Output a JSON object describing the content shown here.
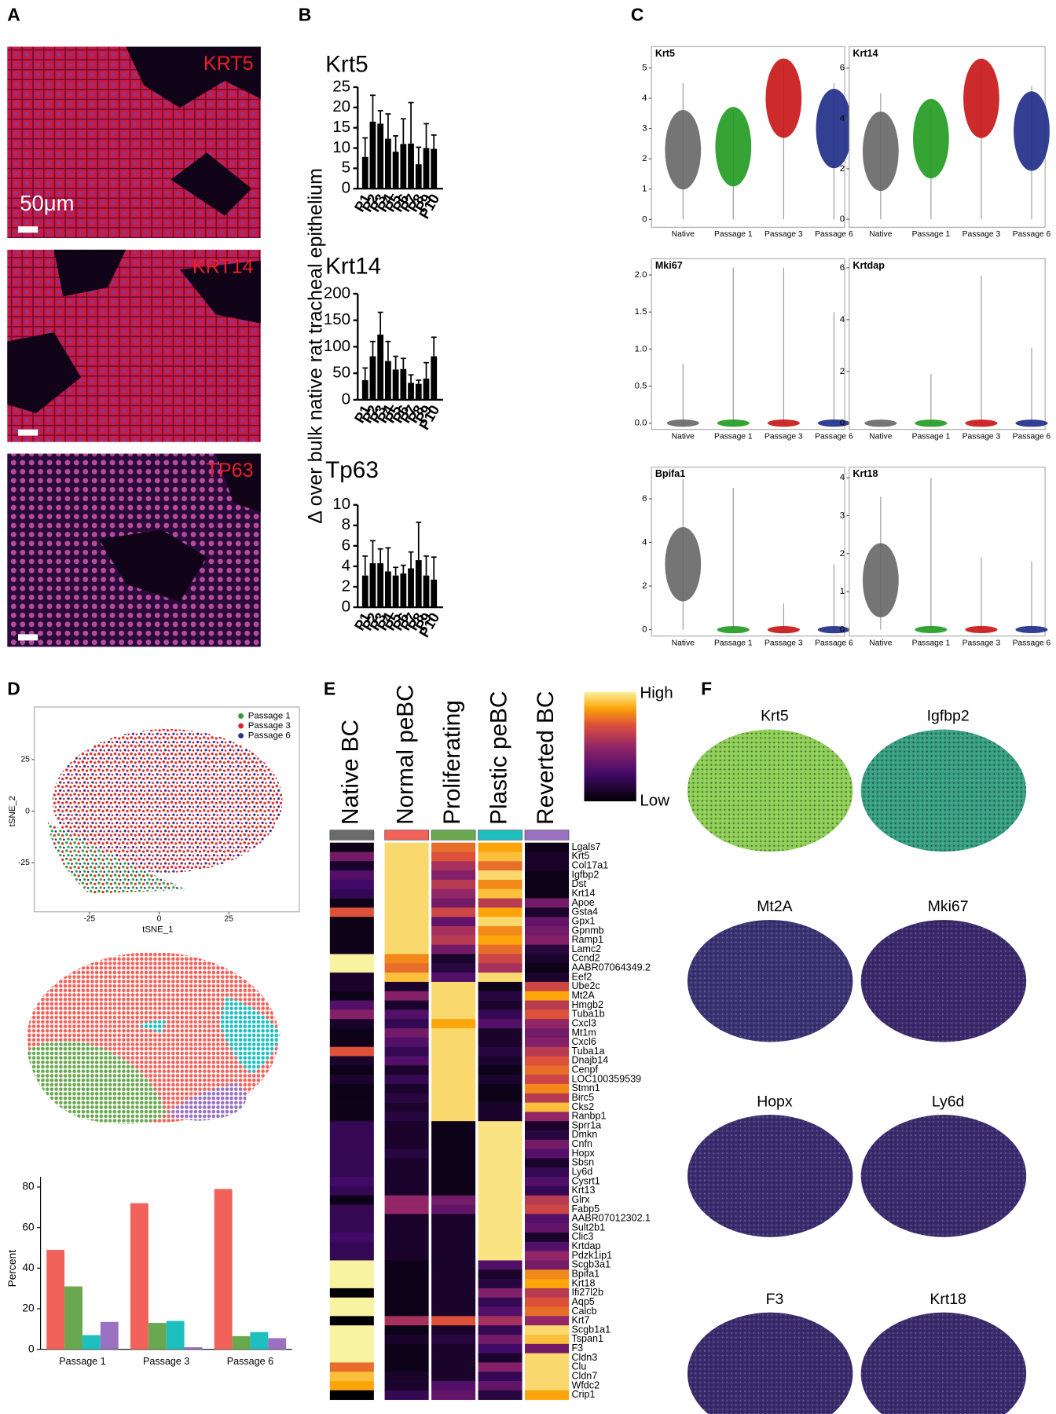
{
  "panel_labels": [
    "A",
    "B",
    "C",
    "D",
    "E",
    "F"
  ],
  "image_panels": [
    {
      "label": "KRT5",
      "scale_bar": "50μm"
    },
    {
      "label": "KRT14"
    },
    {
      "label": "TP63"
    }
  ],
  "panel_b_ylabel": "Δ over bulk native rat tracheal epithelium",
  "chart_data": [
    {
      "type": "bar",
      "title": "Krt5",
      "categories": [
        "P1",
        "P2",
        "P3",
        "P4",
        "P5",
        "P6",
        "P7",
        "P8",
        "P9",
        "P10"
      ],
      "values": [
        7.8,
        16.5,
        16,
        12.3,
        9.1,
        11,
        11.1,
        6,
        10,
        9.8
      ],
      "errors": [
        4.7,
        6.5,
        3.2,
        6.1,
        3.9,
        6.2,
        10.1,
        4.2,
        6,
        3.4
      ],
      "ylim": [
        0,
        25
      ],
      "yticks": [
        0,
        5,
        10,
        15,
        20,
        25
      ],
      "color": "#000000"
    },
    {
      "type": "bar",
      "title": "Krt14",
      "categories": [
        "P1",
        "P2",
        "P3",
        "P4",
        "P5",
        "P6",
        "P7",
        "P8",
        "P9",
        "P10"
      ],
      "values": [
        37,
        82,
        123,
        73,
        57,
        58,
        32,
        30,
        40,
        82
      ],
      "errors": [
        23,
        28,
        42,
        37,
        25,
        20,
        15,
        7,
        30,
        36
      ],
      "ylim": [
        0,
        200
      ],
      "yticks": [
        0,
        50,
        100,
        150,
        200
      ],
      "color": "#000000"
    },
    {
      "type": "bar",
      "title": "Tp63",
      "categories": [
        "P1",
        "P2",
        "P3",
        "P4",
        "P5",
        "P6",
        "P7",
        "P8",
        "P9",
        "P10"
      ],
      "values": [
        3.1,
        4.3,
        4.3,
        3.5,
        3.1,
        3.3,
        3.8,
        4.6,
        3.1,
        2.7
      ],
      "errors": [
        1.9,
        2.2,
        1.4,
        2.3,
        0.8,
        0.8,
        1.6,
        3.7,
        1.9,
        2.2
      ],
      "ylim": [
        0,
        10
      ],
      "yticks": [
        0,
        2,
        4,
        6,
        8,
        10
      ],
      "color": "#000000"
    },
    {
      "type": "violin",
      "title": "Krt5",
      "categories": [
        "Native",
        "Passage 1",
        "Passage 3",
        "Passage 6"
      ],
      "values": [
        2.3,
        2.4,
        4,
        3
      ],
      "max": [
        4.5,
        3.6,
        5.1,
        4.5
      ],
      "colors": [
        "#666666",
        "#1f9a1f",
        "#c81414",
        "#1c2a86"
      ],
      "ylim": [
        -0.26,
        5.7
      ],
      "yticks": [
        0,
        1,
        2,
        3,
        4,
        5
      ]
    },
    {
      "type": "violin",
      "title": "Krt14",
      "categories": [
        "Native",
        "Passage 1",
        "Passage 3",
        "Passage 6"
      ],
      "values": [
        2.7,
        3.2,
        4.8,
        3.5
      ],
      "max": [
        5,
        4.4,
        6.1,
        5.3
      ],
      "colors": [
        "#666666",
        "#1f9a1f",
        "#c81414",
        "#1c2a86"
      ],
      "ylim": [
        -0.32,
        6.85
      ],
      "yticks": [
        0,
        2,
        4,
        6
      ]
    },
    {
      "type": "violin",
      "title": "Mki67",
      "categories": [
        "Native",
        "Passage 1",
        "Passage 3",
        "Passage 6"
      ],
      "values": [
        0,
        0,
        0,
        0
      ],
      "max": [
        0.8,
        2.1,
        2.1,
        1.5
      ],
      "colors": [
        "#666666",
        "#1f9a1f",
        "#c81414",
        "#1c2a86"
      ],
      "ylim": [
        -0.085,
        2.22
      ],
      "yticks": [
        {
          "value": 0,
          "label": "0.0"
        },
        {
          "value": 0.5,
          "label": "0.5"
        },
        {
          "value": 1,
          "label": "1.0"
        },
        {
          "value": 1.5,
          "label": "1.5"
        },
        {
          "value": 2,
          "label": "2.0"
        }
      ]
    },
    {
      "type": "violin",
      "title": "Krtdap",
      "categories": [
        "Native",
        "Passage 1",
        "Passage 3",
        "Passage 6"
      ],
      "values": [
        0,
        0,
        0,
        0
      ],
      "max": [
        0,
        1.9,
        5.7,
        2.9
      ],
      "colors": [
        "#666666",
        "#1f9a1f",
        "#c81414",
        "#1c2a86"
      ],
      "ylim": [
        -0.24,
        6.35
      ],
      "yticks": [
        0,
        2,
        4,
        6
      ]
    },
    {
      "type": "violin",
      "title": "Bpifa1",
      "categories": [
        "Native",
        "Passage 1",
        "Passage 3",
        "Passage 6"
      ],
      "values": [
        3,
        0,
        0,
        0
      ],
      "max": [
        6.9,
        6.5,
        1.2,
        3
      ],
      "colors": [
        "#666666",
        "#1f9a1f",
        "#c81414",
        "#1c2a86"
      ],
      "ylim": [
        -0.29,
        7.45
      ],
      "yticks": [
        0,
        2,
        4,
        6
      ]
    },
    {
      "type": "violin",
      "title": "Krt18",
      "categories": [
        "Native",
        "Passage 1",
        "Passage 3",
        "Passage 6"
      ],
      "values": [
        1.3,
        0,
        0,
        0
      ],
      "max": [
        3.5,
        4,
        1.9,
        1.8
      ],
      "colors": [
        "#666666",
        "#1f9a1f",
        "#c81414",
        "#1c2a86"
      ],
      "ylim": [
        -0.17,
        4.28
      ],
      "yticks": [
        0,
        1,
        2,
        3,
        4
      ]
    },
    {
      "type": "scatter",
      "xlabel": "tSNE_1",
      "ylabel": "tSNE_2",
      "xlim": [
        -44.8,
        50.3
      ],
      "ylim": [
        -48.7,
        50.4
      ],
      "xticks": [
        -25,
        0,
        25
      ],
      "yticks": [
        -25,
        0,
        25
      ],
      "legend": [
        {
          "name": "Passage 1",
          "color": "#2e9e3a"
        },
        {
          "name": "Passage 3",
          "color": "#d8262a"
        },
        {
          "name": "Passage 6",
          "color": "#2c2f8c"
        }
      ]
    },
    {
      "type": "grouped_bar",
      "ylabel": "Percent",
      "categories": [
        "Passage 1",
        "Passage 3",
        "Passage 6"
      ],
      "series": [
        {
          "color": "#f0625a",
          "values": [
            49,
            72,
            79
          ]
        },
        {
          "color": "#6aa84f",
          "values": [
            31,
            13,
            6.5
          ]
        },
        {
          "color": "#1fbfc0",
          "values": [
            7,
            14,
            8.5
          ]
        },
        {
          "color": "#9a70c0",
          "values": [
            13.5,
            1,
            5.5
          ]
        }
      ],
      "ylim": [
        0,
        85
      ],
      "yticks": [
        0,
        20,
        40,
        60,
        80
      ]
    },
    {
      "type": "heatmap",
      "columns": [
        "Native BC",
        "Normal peBC",
        "Proliferating",
        "Plastic peBC",
        "Reverted BC"
      ],
      "column_colors": [
        "#6b6b6b",
        "#f0625a",
        "#6aa84f",
        "#1fbfc0",
        "#9a70c0"
      ],
      "colorbar": [
        "High",
        "Low"
      ],
      "rows": [
        "Lgals7",
        "Krt5",
        "Col17a1",
        "Igfbp2",
        "Dst",
        "Krt14",
        "Apoe",
        "Gsta4",
        "Gpx1",
        "Gpnmb",
        "Ramp1",
        "Lamc2",
        "Ccnd2",
        "AABR07064349.2",
        "Eef2",
        "Ube2c",
        "Mt2A",
        "Hmgb2",
        "Tuba1b",
        "Cxcl3",
        "Mt1m",
        "Cxcl6",
        "Tuba1a",
        "Dnajb14",
        "Cenpf",
        "LOC100359539",
        "Stmn1",
        "Birc5",
        "Cks2",
        "Ranbp1",
        "Sprr1a",
        "Dmkn",
        "Cnfn",
        "Hopx",
        "Sbsn",
        "Ly6d",
        "Cysrt1",
        "Krt13",
        "Glrx",
        "Fabp5",
        "AABR07012302.1",
        "Sult2b1",
        "Clic3",
        "Krtdap",
        "Pdzk1ip1",
        "Scgb3a1",
        "Bpifa1",
        "Krt18",
        "Ifi27l2b",
        "Aqp5",
        "Calcb",
        "Krt7",
        "Scgb1a1",
        "Tspan1",
        "F3",
        "Cldn3",
        "Clu",
        "Cldn7",
        "Wfdc2",
        "Crip1"
      ],
      "values": [
        [
          0.05,
          0.95,
          0.75,
          0.85,
          0.05
        ],
        [
          0.4,
          0.95,
          0.7,
          0.9,
          0.1
        ],
        [
          0.1,
          0.95,
          0.55,
          0.75,
          0.1
        ],
        [
          0.3,
          0.95,
          0.45,
          0.95,
          0.05
        ],
        [
          0.25,
          0.95,
          0.6,
          0.8,
          0.05
        ],
        [
          0.2,
          0.95,
          0.5,
          0.9,
          0.05
        ],
        [
          0.05,
          0.95,
          0.4,
          0.6,
          0.4
        ],
        [
          0.7,
          0.95,
          0.65,
          0.85,
          0.1
        ],
        [
          0.05,
          0.95,
          0.35,
          0.95,
          0.35
        ],
        [
          0.05,
          0.95,
          0.55,
          0.8,
          0.4
        ],
        [
          0.05,
          0.95,
          0.6,
          0.85,
          0.45
        ],
        [
          0.05,
          0.95,
          0.4,
          0.75,
          0.15
        ],
        [
          1,
          0.8,
          0.1,
          0.65,
          0.1
        ],
        [
          1,
          0.75,
          0.15,
          0.55,
          0.05
        ],
        [
          0.1,
          0.9,
          0.3,
          0.95,
          0.1
        ],
        [
          0.1,
          0.1,
          0.95,
          0.05,
          0.65
        ],
        [
          0.05,
          0.45,
          0.95,
          0.15,
          0.85
        ],
        [
          0.3,
          0.1,
          0.95,
          0.1,
          0.6
        ],
        [
          0.45,
          0.3,
          0.95,
          0.2,
          0.7
        ],
        [
          0.1,
          0.2,
          0.85,
          0.3,
          0.5
        ],
        [
          0.05,
          0.4,
          0.95,
          0.1,
          0.4
        ],
        [
          0.05,
          0.3,
          0.95,
          0.1,
          0.45
        ],
        [
          0.7,
          0.2,
          0.95,
          0.15,
          0.6
        ],
        [
          0.1,
          0.3,
          0.95,
          0.1,
          0.7
        ],
        [
          0.05,
          0.1,
          0.95,
          0.05,
          0.75
        ],
        [
          0.1,
          0.2,
          0.95,
          0.1,
          0.65
        ],
        [
          0.05,
          0.1,
          0.95,
          0.05,
          0.8
        ],
        [
          0.05,
          0.15,
          0.95,
          0.05,
          0.6
        ],
        [
          0.05,
          0.1,
          0.95,
          0.1,
          0.9
        ],
        [
          0.05,
          0.15,
          0.95,
          0.1,
          0.5
        ],
        [
          0.2,
          0.1,
          0.05,
          0.97,
          0.1
        ],
        [
          0.2,
          0.1,
          0.05,
          0.97,
          0.15
        ],
        [
          0.2,
          0.1,
          0.05,
          0.97,
          0.4
        ],
        [
          0.2,
          0.15,
          0.05,
          0.97,
          0.3
        ],
        [
          0.2,
          0.1,
          0.05,
          0.97,
          0.1
        ],
        [
          0.2,
          0.1,
          0.05,
          0.97,
          0.2
        ],
        [
          0.25,
          0.1,
          0.05,
          0.97,
          0.3
        ],
        [
          0.2,
          0.1,
          0.05,
          0.97,
          0.2
        ],
        [
          0.05,
          0.5,
          0.4,
          0.97,
          0.6
        ],
        [
          0.2,
          0.5,
          0.35,
          0.97,
          0.65
        ],
        [
          0.2,
          0.1,
          0.1,
          0.97,
          0.3
        ],
        [
          0.2,
          0.1,
          0.1,
          0.97,
          0.35
        ],
        [
          0.25,
          0.1,
          0.1,
          0.97,
          0.1
        ],
        [
          0.2,
          0.1,
          0.1,
          0.97,
          0.3
        ],
        [
          0.2,
          0.1,
          0.1,
          0.97,
          0.5
        ],
        [
          1,
          0.05,
          0.1,
          0.3,
          0.4
        ],
        [
          1,
          0.05,
          0.1,
          0.1,
          0.8
        ],
        [
          1,
          0.05,
          0.1,
          0.15,
          0.85
        ],
        [
          0,
          0.05,
          0.1,
          0.45,
          0.6
        ],
        [
          1,
          0.05,
          0.1,
          0.2,
          0.7
        ],
        [
          1,
          0.05,
          0.1,
          0.3,
          0.75
        ],
        [
          0,
          0.55,
          0.7,
          0.55,
          0.5
        ],
        [
          1,
          0.05,
          0.1,
          0.2,
          0.95
        ],
        [
          1,
          0.1,
          0.15,
          0.4,
          0.9
        ],
        [
          1,
          0.05,
          0.1,
          0.25,
          0.4
        ],
        [
          1,
          0.05,
          0.1,
          0.1,
          0.95
        ],
        [
          0.75,
          0.05,
          0.1,
          0.45,
          0.95
        ],
        [
          0.9,
          0.1,
          0.1,
          0.2,
          0.95
        ],
        [
          0.85,
          0.1,
          0.3,
          0.35,
          0.95
        ],
        [
          0,
          0.2,
          0.35,
          0.15,
          0.85
        ]
      ]
    }
  ],
  "feature_plots": [
    {
      "title": "Krt5",
      "color": "#8ccf52"
    },
    {
      "title": "Igfbp2",
      "color": "#35a07e"
    },
    {
      "title": "Mt2A",
      "color": "#3a3474"
    },
    {
      "title": "Mki67",
      "color": "#3b2a6c"
    },
    {
      "title": "Hopx",
      "color": "#3a2e70"
    },
    {
      "title": "Ly6d",
      "color": "#3b2c6e"
    },
    {
      "title": "F3",
      "color": "#3b2c6e"
    },
    {
      "title": "Krt18",
      "color": "#3b2c6e"
    }
  ]
}
